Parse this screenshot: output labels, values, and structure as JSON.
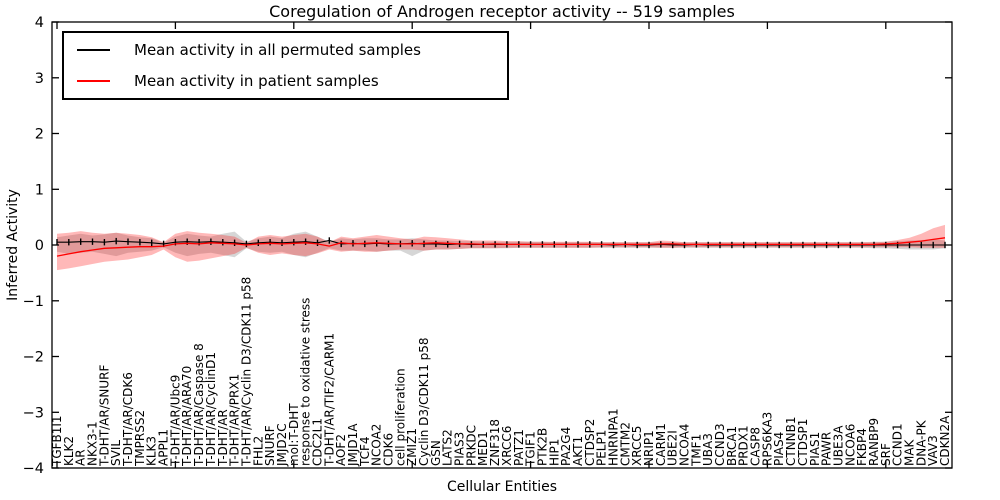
{
  "figure": {
    "title": "Coregulation of Androgen receptor activity -- 519 samples",
    "xlabel": "Cellular Entities",
    "ylabel": "Inferred Activity"
  },
  "legend": {
    "entries": [
      {
        "label": "Mean activity in all permuted samples",
        "color": "#000000"
      },
      {
        "label": "Mean activity in patient samples",
        "color": "#ff0000"
      }
    ]
  },
  "chart_data": {
    "type": "line",
    "title": "Coregulation of Androgen receptor activity -- 519 samples",
    "xlabel": "Cellular Entities",
    "ylabel": "Inferred Activity",
    "ylim": [
      -4,
      4
    ],
    "yticks": [
      4,
      3,
      2,
      1,
      0,
      -1,
      -2,
      -3,
      -4
    ],
    "ytick_labels": [
      "4",
      "3",
      "2",
      "1",
      "0",
      "−1",
      "−2",
      "−3",
      "−4"
    ],
    "grid": false,
    "legend_position": "upper left",
    "categories": [
      "TGFB1I1",
      "KLK2",
      "AR",
      "NKX3-1",
      "T-DHT/AR/SNURF",
      "SVIL",
      "T-DHT/AR/CDK6",
      "TMPRSS2",
      "KLK3",
      "APPL1",
      "T-DHT/AR/Ubc9",
      "T-DHT/AR/ARA70",
      "T-DHT/AR/Caspase 8",
      "T-DHT/AR/CyclinD1",
      "T-DHT/AR",
      "T-DHT/AR/PRX1",
      "T-DHT/AR/Cyclin D3/CDK11 p58",
      "FHL2",
      "SNURF",
      "JMJD2C",
      "mol:T-DHT",
      "response to oxidative stress",
      "CDC2L1",
      "T-DHT/AR/TIF2/CARM1",
      "AOF2",
      "JMJD1A",
      "TCF4",
      "NCOA2",
      "CDK6",
      "cell proliferation",
      "ZMIZ1",
      "Cyclin D3/CDK11 p58",
      "GSN",
      "LATS2",
      "PIAS3",
      "PRKDC",
      "MED1",
      "ZNF318",
      "XRCC6",
      "PATZ1",
      "TGIF1",
      "PTK2B",
      "HIP1",
      "PA2G4",
      "AKT1",
      "CTDSP2",
      "PELP1",
      "HNRNPA1",
      "CMTM2",
      "XRCC5",
      "NRIP1",
      "CARM1",
      "UBE2I",
      "NCOA4",
      "TMF1",
      "UBA3",
      "CCND3",
      "BRCA1",
      "PRDX1",
      "CASP8",
      "RPS6KA3",
      "PIAS4",
      "CTNNB1",
      "CTDSP1",
      "PIAS1",
      "PAWR",
      "UBE3A",
      "NCOA6",
      "FKBP4",
      "RANBP9",
      "SRF",
      "CCND1",
      "MAK",
      "DNA-PK",
      "VAV3",
      "CDKN2A"
    ],
    "series": [
      {
        "name": "Mean activity in all permuted samples",
        "color": "#000000",
        "marker": "|",
        "values": [
          0.05,
          0.05,
          0.06,
          0.06,
          0.05,
          0.07,
          0.06,
          0.05,
          0.04,
          0.02,
          0.05,
          0.06,
          0.05,
          0.06,
          0.05,
          0.04,
          0.02,
          0.04,
          0.05,
          0.04,
          0.05,
          0.06,
          0.04,
          0.08,
          0.02,
          0.03,
          0.02,
          0.03,
          0.02,
          0.02,
          0.03,
          0.02,
          0.02,
          0.01,
          0.02,
          0.01,
          0.01,
          0.01,
          0.01,
          0.01,
          0.01,
          0.01,
          0.01,
          0.01,
          0.01,
          0.01,
          0.01,
          0,
          0.01,
          0,
          0,
          0.01,
          0,
          0,
          0.01,
          0,
          0,
          0,
          0,
          0,
          0,
          0,
          0,
          0,
          0,
          0,
          0,
          0,
          0,
          0,
          0,
          0,
          0,
          0,
          0,
          0
        ]
      },
      {
        "name": "Mean activity in patient samples",
        "color": "#ff0000",
        "marker": "none",
        "values": [
          -0.2,
          -0.16,
          -0.12,
          -0.09,
          -0.06,
          -0.05,
          -0.04,
          -0.03,
          -0.03,
          -0.02,
          0.02,
          0.03,
          0.02,
          0.04,
          0.03,
          0.02,
          0,
          0.02,
          0.03,
          0.02,
          0.03,
          0.04,
          0.02,
          -0.02,
          0.04,
          0.02,
          0.03,
          0.04,
          0.03,
          0.02,
          0.02,
          0.03,
          0.04,
          0.03,
          0.02,
          0.02,
          0.01,
          0.02,
          0.01,
          0.01,
          0.01,
          0.01,
          0.01,
          0.01,
          0.01,
          0.01,
          0.01,
          0.01,
          0.01,
          0.01,
          0.01,
          0.02,
          0.02,
          0.01,
          0.01,
          0.01,
          0.01,
          0.01,
          0.01,
          0.01,
          0.01,
          0.01,
          0.01,
          0.01,
          0.01,
          0.01,
          0.01,
          0.01,
          0.01,
          0.01,
          0.02,
          0.03,
          0.05,
          0.07,
          0.1,
          0.13
        ]
      }
    ],
    "bands": [
      {
        "name": "permuted-samples-range",
        "color": "#808080",
        "opacity": 0.32,
        "upper": [
          0.14,
          0.17,
          0.2,
          0.17,
          0.19,
          0.22,
          0.17,
          0.14,
          0.12,
          0.04,
          0.15,
          0.2,
          0.17,
          0.15,
          0.2,
          0.24,
          0.06,
          0.12,
          0.15,
          0.12,
          0.2,
          0.24,
          0.15,
          0.06,
          0.12,
          0.1,
          0.12,
          0.12,
          0.1,
          0.1,
          0.12,
          0.1,
          0.08,
          0.08,
          0.07,
          0.07,
          0.06,
          0.06,
          0.06,
          0.06,
          0.06,
          0.06,
          0.05,
          0.05,
          0.05,
          0.05,
          0.05,
          0.05,
          0.05,
          0.05,
          0.05,
          0.05,
          0.05,
          0.05,
          0.05,
          0.05,
          0.05,
          0.05,
          0.05,
          0.05,
          0.05,
          0.05,
          0.05,
          0.05,
          0.05,
          0.05,
          0.05,
          0.05,
          0.05,
          0.06,
          0.06,
          0.07,
          0.08,
          0.09,
          0.1,
          0.08
        ],
        "lower": [
          -0.12,
          -0.16,
          -0.14,
          -0.12,
          -0.16,
          -0.2,
          -0.14,
          -0.12,
          -0.1,
          -0.04,
          -0.14,
          -0.2,
          -0.16,
          -0.14,
          -0.18,
          -0.22,
          -0.06,
          -0.12,
          -0.14,
          -0.12,
          -0.18,
          -0.22,
          -0.14,
          -0.06,
          -0.1,
          -0.1,
          -0.1,
          -0.12,
          -0.1,
          -0.1,
          -0.2,
          -0.1,
          -0.08,
          -0.08,
          -0.07,
          -0.06,
          -0.06,
          -0.06,
          -0.06,
          -0.05,
          -0.05,
          -0.05,
          -0.05,
          -0.05,
          -0.05,
          -0.05,
          -0.05,
          -0.05,
          -0.05,
          -0.05,
          -0.05,
          -0.05,
          -0.05,
          -0.05,
          -0.05,
          -0.05,
          -0.05,
          -0.05,
          -0.05,
          -0.05,
          -0.05,
          -0.05,
          -0.05,
          -0.05,
          -0.05,
          -0.05,
          -0.05,
          -0.05,
          -0.05,
          -0.06,
          -0.06,
          -0.07,
          -0.08,
          -0.08,
          -0.08,
          -0.06
        ]
      },
      {
        "name": "patient-samples-range",
        "color": "#ff0000",
        "opacity": 0.28,
        "upper": [
          0.2,
          0.22,
          0.25,
          0.22,
          0.2,
          0.22,
          0.2,
          0.18,
          0.14,
          0.05,
          0.2,
          0.25,
          0.22,
          0.2,
          0.18,
          0.15,
          0.04,
          0.15,
          0.18,
          0.15,
          0.18,
          0.2,
          0.15,
          0.05,
          0.15,
          0.12,
          0.15,
          0.18,
          0.15,
          0.12,
          0.1,
          0.15,
          0.14,
          0.12,
          0.1,
          0.08,
          0.08,
          0.08,
          0.07,
          0.07,
          0.06,
          0.06,
          0.06,
          0.06,
          0.06,
          0.06,
          0.05,
          0.05,
          0.05,
          0.05,
          0.05,
          0.08,
          0.07,
          0.05,
          0.05,
          0.05,
          0.05,
          0.05,
          0.05,
          0.05,
          0.05,
          0.05,
          0.05,
          0.05,
          0.05,
          0.05,
          0.05,
          0.05,
          0.05,
          0.05,
          0.06,
          0.09,
          0.13,
          0.2,
          0.3,
          0.36
        ],
        "lower": [
          -0.45,
          -0.42,
          -0.38,
          -0.34,
          -0.3,
          -0.28,
          -0.26,
          -0.22,
          -0.18,
          -0.08,
          -0.22,
          -0.3,
          -0.28,
          -0.24,
          -0.2,
          -0.16,
          -0.05,
          -0.14,
          -0.18,
          -0.15,
          -0.18,
          -0.2,
          -0.15,
          -0.08,
          -0.12,
          -0.1,
          -0.12,
          -0.12,
          -0.1,
          -0.08,
          -0.08,
          -0.1,
          -0.08,
          -0.08,
          -0.07,
          -0.06,
          -0.06,
          -0.06,
          -0.05,
          -0.05,
          -0.05,
          -0.05,
          -0.05,
          -0.05,
          -0.05,
          -0.05,
          -0.04,
          -0.04,
          -0.04,
          -0.04,
          -0.04,
          -0.05,
          -0.05,
          -0.04,
          -0.04,
          -0.04,
          -0.04,
          -0.04,
          -0.04,
          -0.04,
          -0.04,
          -0.04,
          -0.04,
          -0.04,
          -0.04,
          -0.04,
          -0.04,
          -0.04,
          -0.04,
          -0.04,
          -0.04,
          -0.04,
          -0.04,
          -0.05,
          -0.05,
          -0.05
        ]
      }
    ]
  }
}
